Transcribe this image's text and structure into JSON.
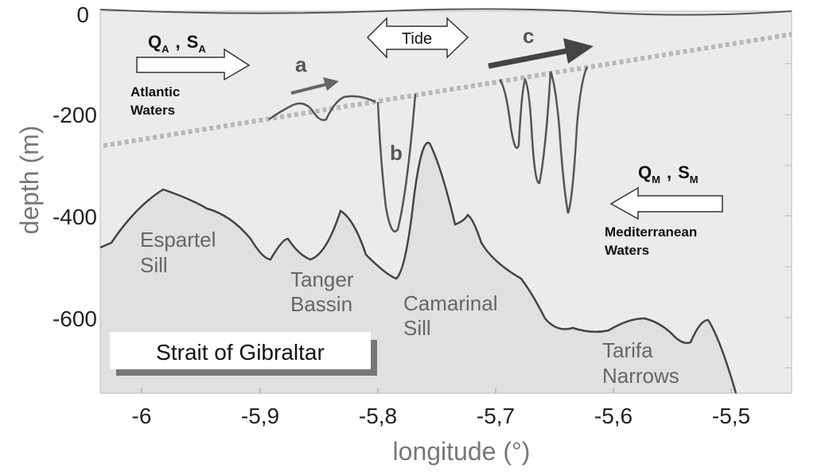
{
  "axes": {
    "xlabel": "longitude (°)",
    "ylabel": "depth (m)",
    "x_ticks": [
      "-6",
      "-5,9",
      "-5,8",
      "-5,7",
      "-5,6",
      "-5,5"
    ],
    "y_ticks": [
      "0",
      "-200",
      "-400",
      "-600"
    ]
  },
  "title_box": "Strait of Gibraltar",
  "inflow": {
    "q_main": "Q",
    "q_sub": "A",
    "comma": ",",
    "s_main": "S",
    "s_sub": "A",
    "label_line1": "Atlantic",
    "label_line2": "Waters"
  },
  "outflow": {
    "q_main": "Q",
    "q_sub": "M",
    "comma": ",",
    "s_main": "S",
    "s_sub": "M",
    "label_line1": "Mediterranean",
    "label_line2": "Waters"
  },
  "tide_label": "Tide",
  "wave_labels": {
    "a": "a",
    "b": "b",
    "c": "c"
  },
  "places": {
    "espartel": [
      "Espartel",
      "Sill"
    ],
    "tanger": [
      "Tanger",
      "Bassin"
    ],
    "camarinal": [
      "Camarinal",
      "Sill"
    ],
    "tarifa": [
      "Tarifa",
      "Narrows"
    ]
  },
  "colors": {
    "water": "#ebebeb",
    "seabed": "#e2e2e2",
    "bathymetry_line": "#444444",
    "interface_line": "#b8b8b8",
    "arrow_dark": "#444444"
  }
}
